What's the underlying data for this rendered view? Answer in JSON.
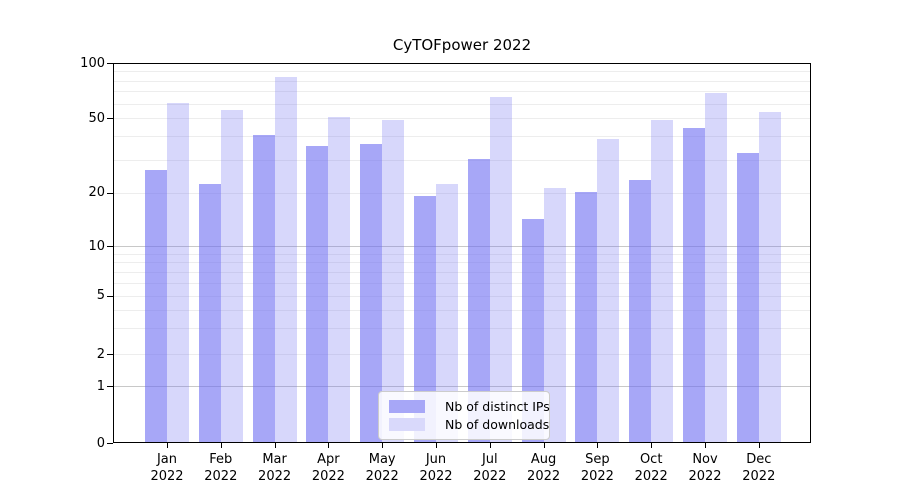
{
  "chart_data": {
    "type": "bar",
    "title": "CyTOFpower 2022",
    "categories": [
      "Jan",
      "Feb",
      "Mar",
      "Apr",
      "May",
      "Jun",
      "Jul",
      "Aug",
      "Sep",
      "Oct",
      "Nov",
      "Dec"
    ],
    "category_year": "2022",
    "series": [
      {
        "name": "Nb of distinct IPs",
        "color": "rgba(109,109,242,0.6)",
        "swatch_color": "#a7a7f7",
        "values": [
          26,
          22,
          40,
          35,
          36,
          19,
          30,
          14,
          20,
          23,
          44,
          32
        ]
      },
      {
        "name": "Nb of downloads",
        "color": "rgba(109,109,242,0.27)",
        "swatch_color": "#d9d9fb",
        "values": [
          60,
          55,
          83,
          50,
          48,
          22,
          64,
          21,
          38,
          48,
          68,
          53
        ]
      }
    ],
    "y_axis": {
      "scale": "symlog",
      "ticks": [
        0,
        1,
        2,
        5,
        10,
        20,
        50,
        100
      ],
      "lim": [
        0,
        100
      ],
      "major_gridline_values": [
        1,
        10
      ],
      "minor_gridline_values": [
        2,
        3,
        4,
        5,
        6,
        7,
        8,
        9,
        20,
        30,
        40,
        50,
        60,
        70,
        80,
        90
      ]
    },
    "grid": "on",
    "legend_position": "bottom-center"
  }
}
